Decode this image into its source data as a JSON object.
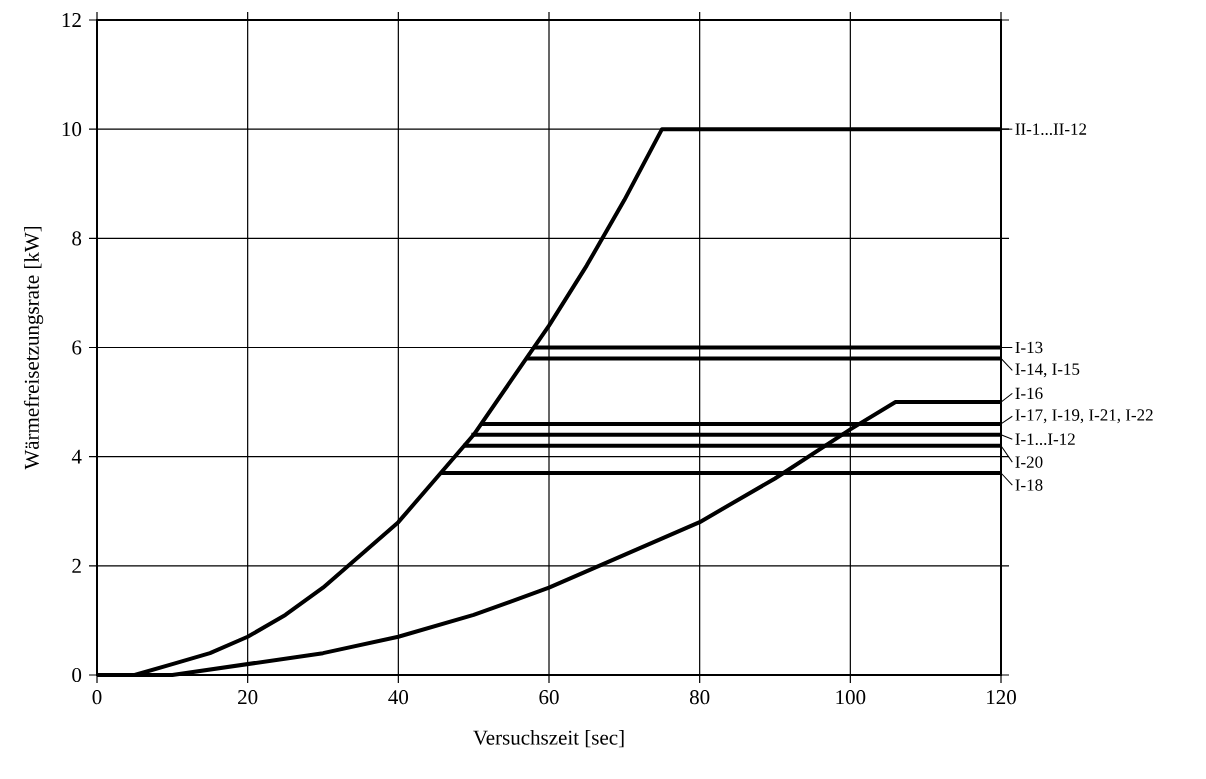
{
  "chart_data": {
    "type": "line",
    "xlabel": "Versuchszeit [sec]",
    "ylabel": "Wärmefreisetzungsrate [kW]",
    "xlim": [
      0,
      120
    ],
    "ylim": [
      0,
      12
    ],
    "xticks": [
      0,
      20,
      40,
      60,
      80,
      100,
      120
    ],
    "yticks": [
      0,
      2,
      4,
      6,
      8,
      10,
      12
    ],
    "grid": true,
    "legend": "right",
    "series": [
      {
        "name": "II-1...II-12",
        "color": "#000000",
        "x": [
          0,
          5,
          10,
          15,
          20,
          25,
          30,
          35,
          40,
          45,
          50,
          55,
          60,
          65,
          70,
          75,
          120
        ],
        "values": [
          0,
          0,
          0.2,
          0.4,
          0.7,
          1.1,
          1.6,
          2.2,
          2.8,
          3.6,
          4.4,
          5.4,
          6.4,
          7.5,
          8.7,
          10,
          10
        ]
      },
      {
        "name": "I-13",
        "color": "#000000",
        "x": [
          58.1,
          120
        ],
        "values": [
          6.0,
          6.0
        ]
      },
      {
        "name": "I-14, I-15",
        "color": "#000000",
        "x": [
          57.1,
          120
        ],
        "values": [
          5.8,
          5.8
        ]
      },
      {
        "name": "I-16",
        "color": "#000000",
        "x": [
          0,
          10,
          20,
          30,
          40,
          50,
          60,
          70,
          80,
          90,
          100,
          106,
          120
        ],
        "values": [
          0,
          0,
          0.2,
          0.4,
          0.7,
          1.1,
          1.6,
          2.2,
          2.8,
          3.6,
          4.5,
          5,
          5
        ]
      },
      {
        "name": "I-17, I-19, I-21, I-22",
        "color": "#000000",
        "x": [
          50.9,
          120
        ],
        "values": [
          4.6,
          4.6
        ]
      },
      {
        "name": "I-1...I-12",
        "color": "#000000",
        "x": [
          49.7,
          120
        ],
        "values": [
          4.4,
          4.4
        ]
      },
      {
        "name": "I-20",
        "color": "#000000",
        "x": [
          48.6,
          120
        ],
        "values": [
          4.2,
          4.2
        ]
      },
      {
        "name": "I-18",
        "color": "#000000",
        "x": [
          45.6,
          120
        ],
        "values": [
          3.7,
          3.7
        ]
      }
    ]
  }
}
